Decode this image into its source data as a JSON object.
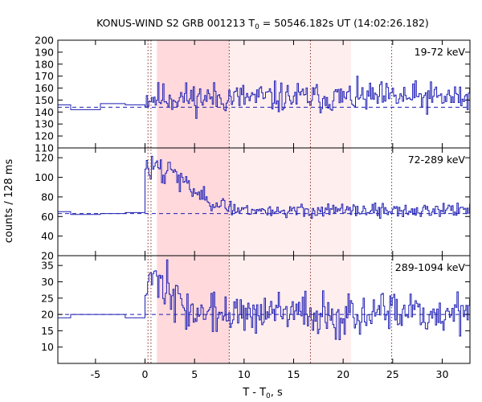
{
  "chart_data": {
    "type": "line",
    "title_main": "KONUS-WIND S2 GRB 001213 T",
    "title_sub": "0",
    "title_rest": " = 50546.182s UT (14:02:26.182)",
    "xlabel_main": "T - T",
    "xlabel_sub": "0",
    "xlabel_rest": ", s",
    "ylabel": "counts / 128 ms",
    "xlim": [
      -8.8,
      32.8
    ],
    "xticks": [
      -5,
      0,
      5,
      10,
      15,
      20,
      25,
      30
    ],
    "xtick_labels": [
      "-5",
      "0",
      "5",
      "10",
      "15",
      "20",
      "25",
      "30"
    ],
    "shaded_regions": [
      {
        "start": 1.2,
        "end": 8.5,
        "color": "#ffd9dc"
      },
      {
        "start": 8.5,
        "end": 20.8,
        "color": "#ffeeee"
      }
    ],
    "vertical_markers": [
      0.3,
      0.6,
      8.5,
      16.7,
      24.9
    ],
    "line_color": "#1f1fb3",
    "panels": [
      {
        "name": "19-72 keV",
        "label": "19-72 keV",
        "ylim": [
          110,
          200
        ],
        "yticks": [
          110,
          120,
          130,
          140,
          150,
          160,
          170,
          180,
          190,
          200
        ],
        "ytick_labels": [
          "110",
          "120",
          "130",
          "140",
          "150",
          "160",
          "170",
          "180",
          "190",
          "200"
        ],
        "background": 144,
        "pre_trigger": [
          {
            "t_start": -8.8,
            "t_end": -7.5,
            "value": 146
          },
          {
            "t_start": -7.5,
            "t_end": -4.5,
            "value": 142
          },
          {
            "t_start": -4.5,
            "t_end": -2.0,
            "value": 147
          },
          {
            "t_start": -2.0,
            "t_end": 0.0,
            "value": 146
          }
        ],
        "post_trigger": {
          "t_start": 0.0,
          "dt": 0.128,
          "mean": 152,
          "spread": 9,
          "peak_amp": 0,
          "peak_decay": 0,
          "seed": 11
        }
      },
      {
        "name": "72-289 keV",
        "label": "72-289 keV",
        "ylim": [
          20,
          130
        ],
        "yticks": [
          20,
          40,
          60,
          80,
          100,
          120
        ],
        "ytick_labels": [
          "20",
          "40",
          "60",
          "80",
          "100",
          "120"
        ],
        "background": 63,
        "pre_trigger": [
          {
            "t_start": -8.8,
            "t_end": -7.5,
            "value": 65
          },
          {
            "t_start": -7.5,
            "t_end": -4.5,
            "value": 62
          },
          {
            "t_start": -4.5,
            "t_end": -2.0,
            "value": 63
          },
          {
            "t_start": -2.0,
            "t_end": 0.0,
            "value": 64
          }
        ],
        "post_trigger": {
          "t_start": 0.0,
          "dt": 0.128,
          "mean": 66,
          "spread": 5,
          "peak_amp": 45,
          "peak_decay": 6.5,
          "seed": 23
        }
      },
      {
        "name": "289-1094 keV",
        "label": "289-1094 keV",
        "ylim": [
          5,
          38
        ],
        "yticks": [
          10,
          15,
          20,
          25,
          30,
          35
        ],
        "ytick_labels": [
          "10",
          "15",
          "20",
          "25",
          "30",
          "35"
        ],
        "background": 20,
        "pre_trigger": [
          {
            "t_start": -8.8,
            "t_end": -7.5,
            "value": 19
          },
          {
            "t_start": -7.5,
            "t_end": -4.5,
            "value": 20
          },
          {
            "t_start": -4.5,
            "t_end": -2.0,
            "value": 20
          },
          {
            "t_start": -2.0,
            "t_end": 0.0,
            "value": 19
          }
        ],
        "post_trigger": {
          "t_start": 0.0,
          "dt": 0.128,
          "mean": 20,
          "spread": 4.5,
          "peak_amp": 12,
          "peak_decay": 3.5,
          "seed": 37
        }
      }
    ]
  }
}
